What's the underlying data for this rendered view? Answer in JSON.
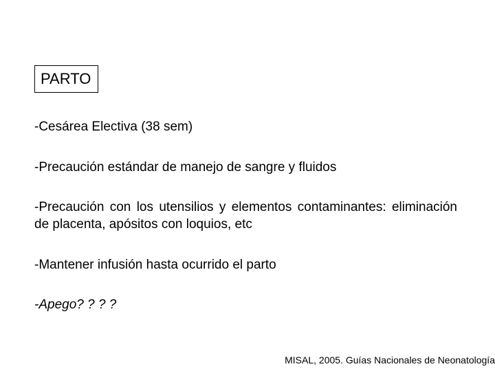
{
  "title": "PARTO",
  "bullets": {
    "b1": "-Cesárea Electiva (38 sem)",
    "b2": "-Precaución estándar de manejo de sangre y  fluidos",
    "b3": "-Precaución con los utensilios y elementos contaminantes: eliminación de placenta, apósitos con loquios, etc",
    "b4": "-Mantener infusión hasta  ocurrido el parto",
    "b5": "-Apego? ? ? ?"
  },
  "citation": "MISAL, 2005. Guías Nacionales de Neonatología",
  "colors": {
    "background": "#ffffff",
    "text": "#000000",
    "border": "#000000"
  },
  "typography": {
    "title_fontsize": 22,
    "body_fontsize": 19,
    "citation_fontsize": 14,
    "font_family": "Arial"
  }
}
